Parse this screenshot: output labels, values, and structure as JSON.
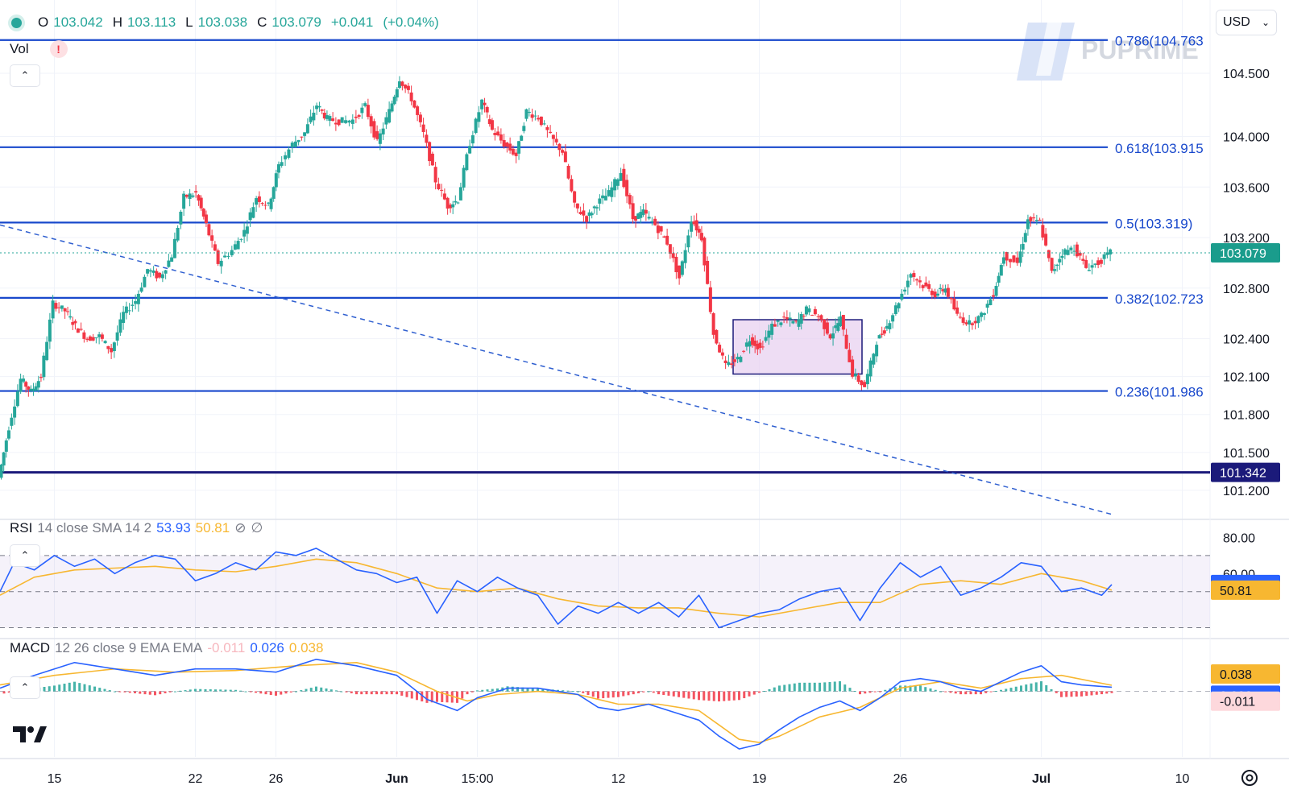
{
  "header": {
    "ohlc": [
      {
        "key": "O",
        "value": "103.042"
      },
      {
        "key": "H",
        "value": "103.113"
      },
      {
        "key": "L",
        "value": "103.038"
      },
      {
        "key": "C",
        "value": "103.079"
      }
    ],
    "change": "+0.041",
    "change_pct": "(+0.04%)",
    "vol_label": "Vol",
    "warning_glyph": "!",
    "currency": "USD",
    "watermark": "PUPRIME"
  },
  "colors": {
    "up": "#26a69a",
    "down": "#f23645",
    "level_line": "#1848cc",
    "support_line": "#1b1a7a",
    "rsi_line": "#2962ff",
    "signal_line": "#f7b731",
    "box_fill": "#e8d1f0",
    "box_stroke": "#1b1a7a"
  },
  "icons": [
    "chevron-up-icon",
    "chevron-down-icon",
    "eye-off-icon",
    "gear-icon",
    "tradingview-logo-icon",
    "alert-icon"
  ],
  "chart_data": [
    {
      "type": "candlestick",
      "title": "",
      "y_ticks": [
        104.5,
        104.0,
        103.6,
        103.2,
        102.8,
        102.4,
        102.1,
        101.8,
        101.5,
        101.2
      ],
      "y_tick_labels": [
        "104.500",
        "104.000",
        "103.600",
        "103.200",
        "102.800",
        "102.400",
        "102.100",
        "101.800",
        "101.500",
        "101.200"
      ],
      "ylim": [
        100.97,
        105.08
      ],
      "x_ticks": [
        {
          "label": "15",
          "day": 0
        },
        {
          "label": "22",
          "day": 7
        },
        {
          "label": "26",
          "day": 11
        },
        {
          "label": "Jun",
          "day": 17
        },
        {
          "label": "15:00",
          "day": 21
        },
        {
          "label": "12",
          "day": 28
        },
        {
          "label": "19",
          "day": 35
        },
        {
          "label": "26",
          "day": 42
        },
        {
          "label": "Jul",
          "day": 49
        },
        {
          "label": "10",
          "day": 56
        }
      ],
      "xlim": [
        -2.7,
        61.3
      ],
      "current_price": {
        "value": 103.079,
        "label": "103.079"
      },
      "support_level": {
        "value": 101.342,
        "label": "101.342"
      },
      "fib_levels": [
        {
          "value": 104.763,
          "label": "0.786(104.763"
        },
        {
          "value": 103.915,
          "label": "0.618(103.915"
        },
        {
          "value": 103.319,
          "label": "0.5(103.319)"
        },
        {
          "value": 102.723,
          "label": "0.382(102.723"
        },
        {
          "value": 101.986,
          "label": "0.236(101.986"
        }
      ],
      "trendline": {
        "from": {
          "day": -2.7,
          "value": 103.3
        },
        "to": {
          "day": 52.5,
          "value": 101.01
        }
      },
      "range_box": {
        "day_start": 33.7,
        "day_end": 40.1,
        "value_top": 102.55,
        "value_bottom": 102.12
      },
      "path_points": [
        [
          -2.7,
          101.3
        ],
        [
          -2.2,
          101.7
        ],
        [
          -1.6,
          102.08
        ],
        [
          -1.1,
          101.98
        ],
        [
          -0.6,
          102.1
        ],
        [
          0.0,
          102.68
        ],
        [
          0.6,
          102.62
        ],
        [
          1.1,
          102.5
        ],
        [
          1.7,
          102.4
        ],
        [
          2.3,
          102.42
        ],
        [
          2.9,
          102.3
        ],
        [
          3.5,
          102.6
        ],
        [
          4.1,
          102.7
        ],
        [
          4.7,
          102.95
        ],
        [
          5.3,
          102.88
        ],
        [
          5.9,
          103.06
        ],
        [
          6.5,
          103.52
        ],
        [
          7.1,
          103.55
        ],
        [
          7.6,
          103.3
        ],
        [
          8.2,
          103.0
        ],
        [
          8.9,
          103.1
        ],
        [
          9.5,
          103.25
        ],
        [
          10.1,
          103.52
        ],
        [
          10.7,
          103.45
        ],
        [
          11.2,
          103.77
        ],
        [
          11.9,
          103.94
        ],
        [
          12.5,
          104.03
        ],
        [
          13.1,
          104.25
        ],
        [
          13.6,
          104.14
        ],
        [
          14.2,
          104.12
        ],
        [
          14.9,
          104.13
        ],
        [
          15.5,
          104.24
        ],
        [
          16.1,
          103.95
        ],
        [
          16.7,
          104.2
        ],
        [
          17.2,
          104.46
        ],
        [
          17.8,
          104.3
        ],
        [
          18.4,
          104.02
        ],
        [
          19.0,
          103.65
        ],
        [
          19.6,
          103.45
        ],
        [
          20.1,
          103.5
        ],
        [
          20.7,
          103.95
        ],
        [
          21.3,
          104.28
        ],
        [
          21.8,
          104.05
        ],
        [
          22.4,
          103.94
        ],
        [
          23.0,
          103.85
        ],
        [
          23.5,
          104.2
        ],
        [
          24.1,
          104.15
        ],
        [
          24.7,
          104.0
        ],
        [
          25.3,
          103.88
        ],
        [
          25.9,
          103.45
        ],
        [
          26.5,
          103.35
        ],
        [
          27.0,
          103.47
        ],
        [
          27.6,
          103.55
        ],
        [
          28.2,
          103.72
        ],
        [
          28.8,
          103.35
        ],
        [
          29.3,
          103.4
        ],
        [
          29.9,
          103.3
        ],
        [
          30.5,
          103.16
        ],
        [
          31.1,
          102.88
        ],
        [
          31.7,
          103.35
        ],
        [
          32.2,
          103.2
        ],
        [
          32.8,
          102.44
        ],
        [
          33.4,
          102.18
        ],
        [
          34.0,
          102.24
        ],
        [
          34.6,
          102.4
        ],
        [
          35.1,
          102.32
        ],
        [
          35.7,
          102.5
        ],
        [
          36.3,
          102.56
        ],
        [
          36.9,
          102.52
        ],
        [
          37.4,
          102.63
        ],
        [
          38.0,
          102.58
        ],
        [
          38.6,
          102.42
        ],
        [
          39.1,
          102.56
        ],
        [
          39.7,
          102.12
        ],
        [
          40.3,
          102.02
        ],
        [
          40.9,
          102.38
        ],
        [
          41.4,
          102.5
        ],
        [
          42.0,
          102.7
        ],
        [
          42.6,
          102.92
        ],
        [
          43.2,
          102.82
        ],
        [
          43.8,
          102.75
        ],
        [
          44.3,
          102.8
        ],
        [
          44.9,
          102.58
        ],
        [
          45.5,
          102.52
        ],
        [
          46.1,
          102.58
        ],
        [
          46.7,
          102.76
        ],
        [
          47.2,
          103.06
        ],
        [
          47.9,
          103.0
        ],
        [
          48.4,
          103.34
        ],
        [
          49.0,
          103.32
        ],
        [
          49.6,
          102.92
        ],
        [
          50.1,
          103.08
        ],
        [
          50.7,
          103.12
        ],
        [
          51.3,
          102.96
        ],
        [
          51.9,
          103.0
        ],
        [
          52.5,
          103.08
        ]
      ]
    },
    {
      "type": "line",
      "title": "",
      "name": "RSI",
      "params": "14 close SMA 14 2",
      "values_label": {
        "rsi": "53.93",
        "sma": "50.81"
      },
      "ylim": [
        24,
        90
      ],
      "y_ticks": [
        80,
        60
      ],
      "y_tick_labels": [
        "80.00",
        "60.00"
      ],
      "bands": {
        "upper": 70,
        "middle": 50,
        "lower": 30
      },
      "current": {
        "rsi": 53.93,
        "sma": 50.81
      },
      "rsi_points": [
        [
          -2.7,
          50
        ],
        [
          -2.0,
          66
        ],
        [
          -1.0,
          62
        ],
        [
          0.0,
          70
        ],
        [
          1.0,
          64
        ],
        [
          2.0,
          68
        ],
        [
          3.0,
          60
        ],
        [
          4.0,
          66
        ],
        [
          5.0,
          70
        ],
        [
          6.0,
          68
        ],
        [
          7.0,
          56
        ],
        [
          8.0,
          60
        ],
        [
          9.0,
          66
        ],
        [
          10.0,
          62
        ],
        [
          11.0,
          72
        ],
        [
          12.0,
          70
        ],
        [
          13.0,
          74
        ],
        [
          14.0,
          68
        ],
        [
          15.0,
          62
        ],
        [
          16.0,
          60
        ],
        [
          17.0,
          55
        ],
        [
          18.0,
          58
        ],
        [
          19.0,
          38
        ],
        [
          20.0,
          56
        ],
        [
          21.0,
          50
        ],
        [
          22.0,
          58
        ],
        [
          23.0,
          52
        ],
        [
          24.0,
          48
        ],
        [
          25.0,
          32
        ],
        [
          26.0,
          42
        ],
        [
          27.0,
          38
        ],
        [
          28.0,
          44
        ],
        [
          29.0,
          38
        ],
        [
          30.0,
          44
        ],
        [
          31.0,
          36
        ],
        [
          32.0,
          48
        ],
        [
          33.0,
          30
        ],
        [
          34.0,
          34
        ],
        [
          35.0,
          38
        ],
        [
          36.0,
          40
        ],
        [
          37.0,
          46
        ],
        [
          38.0,
          50
        ],
        [
          39.0,
          52
        ],
        [
          40.0,
          34
        ],
        [
          41.0,
          52
        ],
        [
          42.0,
          66
        ],
        [
          43.0,
          58
        ],
        [
          44.0,
          64
        ],
        [
          45.0,
          48
        ],
        [
          46.0,
          52
        ],
        [
          47.0,
          58
        ],
        [
          48.0,
          66
        ],
        [
          49.0,
          64
        ],
        [
          50.0,
          50
        ],
        [
          51.0,
          52
        ],
        [
          52.0,
          48
        ],
        [
          52.5,
          53.93
        ]
      ],
      "sma_points": [
        [
          -2.7,
          48
        ],
        [
          -1.0,
          58
        ],
        [
          1.0,
          62
        ],
        [
          3.0,
          63
        ],
        [
          5.0,
          64
        ],
        [
          7.0,
          62
        ],
        [
          9.0,
          61
        ],
        [
          11.0,
          64
        ],
        [
          13.0,
          68
        ],
        [
          15.0,
          66
        ],
        [
          17.0,
          60
        ],
        [
          19.0,
          52
        ],
        [
          21.0,
          50
        ],
        [
          23.0,
          52
        ],
        [
          25.0,
          46
        ],
        [
          27.0,
          42
        ],
        [
          29.0,
          41
        ],
        [
          31.0,
          41
        ],
        [
          33.0,
          38
        ],
        [
          35.0,
          36
        ],
        [
          37.0,
          40
        ],
        [
          39.0,
          44
        ],
        [
          41.0,
          44
        ],
        [
          43.0,
          54
        ],
        [
          45.0,
          56
        ],
        [
          47.0,
          54
        ],
        [
          49.0,
          60
        ],
        [
          51.0,
          56
        ],
        [
          52.5,
          50.81
        ]
      ]
    },
    {
      "type": "line",
      "title": "",
      "name": "MACD",
      "params": "12 26 close 9 EMA EMA",
      "values_label": {
        "histogram": "-0.011",
        "macd": "0.026",
        "signal": "0.038"
      },
      "ylim": [
        -0.42,
        0.33
      ],
      "zero_line": 0,
      "current": {
        "signal": 0.038,
        "macd": 0.026,
        "histogram": -0.011
      },
      "macd_points": [
        [
          -2.7,
          0.02
        ],
        [
          -1.0,
          0.1
        ],
        [
          1.0,
          0.18
        ],
        [
          3.0,
          0.14
        ],
        [
          5.0,
          0.1
        ],
        [
          7.0,
          0.14
        ],
        [
          9.0,
          0.14
        ],
        [
          11.0,
          0.12
        ],
        [
          13.0,
          0.2
        ],
        [
          15.0,
          0.16
        ],
        [
          17.0,
          0.1
        ],
        [
          18.5,
          -0.05
        ],
        [
          20.0,
          -0.12
        ],
        [
          21.0,
          -0.04
        ],
        [
          22.5,
          0.02
        ],
        [
          24.0,
          0.02
        ],
        [
          26.0,
          -0.02
        ],
        [
          27.0,
          -0.1
        ],
        [
          28.0,
          -0.12
        ],
        [
          29.5,
          -0.08
        ],
        [
          31.0,
          -0.14
        ],
        [
          32.0,
          -0.18
        ],
        [
          33.0,
          -0.28
        ],
        [
          34.0,
          -0.36
        ],
        [
          35.0,
          -0.33
        ],
        [
          36.0,
          -0.24
        ],
        [
          37.0,
          -0.16
        ],
        [
          38.0,
          -0.1
        ],
        [
          39.0,
          -0.06
        ],
        [
          40.0,
          -0.12
        ],
        [
          41.0,
          -0.04
        ],
        [
          42.0,
          0.06
        ],
        [
          43.0,
          0.08
        ],
        [
          44.0,
          0.06
        ],
        [
          45.0,
          0.02
        ],
        [
          46.0,
          0.0
        ],
        [
          47.0,
          0.06
        ],
        [
          48.0,
          0.12
        ],
        [
          49.0,
          0.16
        ],
        [
          50.0,
          0.06
        ],
        [
          51.0,
          0.04
        ],
        [
          52.5,
          0.026
        ]
      ],
      "signal_points": [
        [
          -2.7,
          0.04
        ],
        [
          0.0,
          0.1
        ],
        [
          3.0,
          0.14
        ],
        [
          6.0,
          0.12
        ],
        [
          9.0,
          0.13
        ],
        [
          12.0,
          0.16
        ],
        [
          15.0,
          0.18
        ],
        [
          17.0,
          0.12
        ],
        [
          19.0,
          0.0
        ],
        [
          20.5,
          -0.06
        ],
        [
          22.0,
          -0.02
        ],
        [
          24.0,
          0.0
        ],
        [
          26.0,
          -0.02
        ],
        [
          28.0,
          -0.08
        ],
        [
          30.0,
          -0.08
        ],
        [
          32.0,
          -0.12
        ],
        [
          34.0,
          -0.3
        ],
        [
          35.0,
          -0.32
        ],
        [
          36.0,
          -0.28
        ],
        [
          38.0,
          -0.16
        ],
        [
          40.0,
          -0.1
        ],
        [
          42.0,
          0.02
        ],
        [
          44.0,
          0.06
        ],
        [
          46.0,
          0.02
        ],
        [
          48.0,
          0.08
        ],
        [
          50.0,
          0.1
        ],
        [
          52.5,
          0.038
        ]
      ]
    }
  ]
}
